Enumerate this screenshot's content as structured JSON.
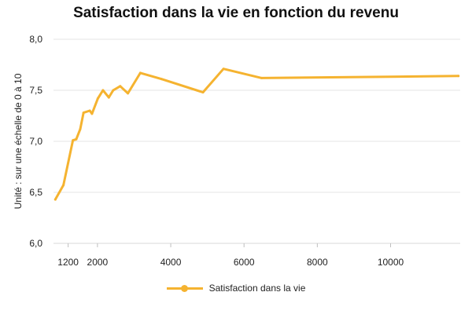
{
  "chart_data": {
    "type": "line",
    "title": "Satisfaction dans la vie en fonction du revenu",
    "xlabel": "",
    "ylabel": "Unité : sur une échelle de 0 à 10",
    "xlim": [
      800,
      11900
    ],
    "ylim": [
      6.0,
      8.0
    ],
    "x_ticks": [
      {
        "value": 1200,
        "label": "1200"
      },
      {
        "value": 2000,
        "label": "2000"
      },
      {
        "value": 4000,
        "label": "4000"
      },
      {
        "value": 6000,
        "label": "6000"
      },
      {
        "value": 8000,
        "label": "8000"
      },
      {
        "value": 10000,
        "label": "10000"
      }
    ],
    "y_ticks": [
      {
        "value": 6.0,
        "label": "6,0"
      },
      {
        "value": 6.5,
        "label": "6,5"
      },
      {
        "value": 7.0,
        "label": "7,0"
      },
      {
        "value": 7.5,
        "label": "7,5"
      },
      {
        "value": 8.0,
        "label": "8,0"
      }
    ],
    "grid": {
      "y": true,
      "x": false
    },
    "legend": {
      "position": "bottom"
    },
    "series": [
      {
        "name": "Satisfaction dans la vie",
        "color": "#F5B330",
        "points": [
          {
            "x": 850,
            "y": 6.43
          },
          {
            "x": 1070,
            "y": 6.57
          },
          {
            "x": 1330,
            "y": 7.01
          },
          {
            "x": 1420,
            "y": 7.02
          },
          {
            "x": 1530,
            "y": 7.12
          },
          {
            "x": 1620,
            "y": 7.28
          },
          {
            "x": 1790,
            "y": 7.3
          },
          {
            "x": 1850,
            "y": 7.27
          },
          {
            "x": 2010,
            "y": 7.42
          },
          {
            "x": 2150,
            "y": 7.5
          },
          {
            "x": 2310,
            "y": 7.43
          },
          {
            "x": 2430,
            "y": 7.5
          },
          {
            "x": 2620,
            "y": 7.54
          },
          {
            "x": 2830,
            "y": 7.47
          },
          {
            "x": 3170,
            "y": 7.67
          },
          {
            "x": 3750,
            "y": 7.61
          },
          {
            "x": 4880,
            "y": 7.48
          },
          {
            "x": 5440,
            "y": 7.71
          },
          {
            "x": 6480,
            "y": 7.62
          },
          {
            "x": 11850,
            "y": 7.64
          }
        ]
      }
    ]
  }
}
